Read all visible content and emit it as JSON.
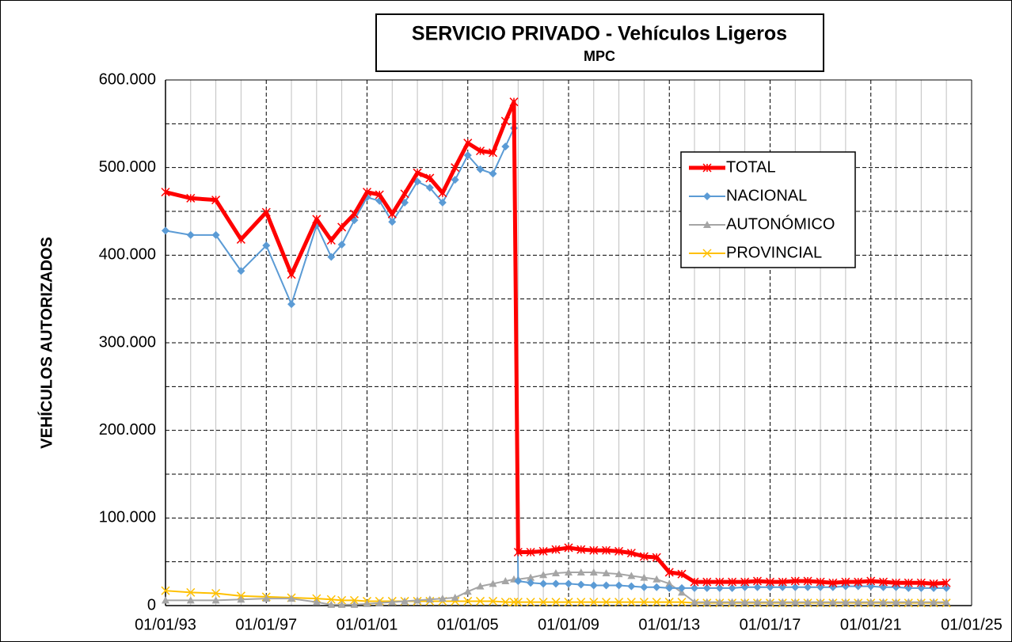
{
  "chart_data": {
    "type": "line",
    "title": "SERVICIO PRIVADO - Vehículos Ligeros",
    "subtitle": "MPC",
    "y_label": "VEHÍCULOS AUTORIZADOS",
    "x": [
      "1993-01-01",
      "1994-01-01",
      "1995-01-01",
      "1996-01-01",
      "1997-01-01",
      "1998-01-01",
      "1999-01-01",
      "1999-08-01",
      "2000-01-01",
      "2000-07-01",
      "2001-01-01",
      "2001-07-01",
      "2002-01-01",
      "2002-07-01",
      "2003-01-01",
      "2003-07-01",
      "2004-01-01",
      "2004-07-01",
      "2005-01-01",
      "2005-07-01",
      "2006-01-01",
      "2006-07-01",
      "2006-11-01",
      "2007-01-01",
      "2007-07-01",
      "2008-01-01",
      "2008-07-01",
      "2009-01-01",
      "2009-07-01",
      "2010-01-01",
      "2010-07-01",
      "2011-01-01",
      "2011-07-01",
      "2012-01-01",
      "2012-07-01",
      "2013-01-01",
      "2013-07-01",
      "2014-01-01",
      "2014-07-01",
      "2015-01-01",
      "2015-07-01",
      "2016-01-01",
      "2016-07-01",
      "2017-01-01",
      "2017-07-01",
      "2018-01-01",
      "2018-07-01",
      "2019-01-01",
      "2019-07-01",
      "2020-01-01",
      "2020-07-01",
      "2021-01-01",
      "2021-07-01",
      "2022-01-01",
      "2022-07-01",
      "2023-01-01",
      "2023-07-01",
      "2024-01-01"
    ],
    "series": [
      {
        "name": "TOTAL",
        "color": "#ff0000",
        "width": 5,
        "marker": "star",
        "values": [
          472000,
          465000,
          463000,
          418000,
          449000,
          378000,
          441000,
          417000,
          432000,
          447000,
          472000,
          469000,
          447000,
          470000,
          494000,
          488000,
          471000,
          500000,
          528000,
          519000,
          517000,
          553000,
          575000,
          61000,
          61000,
          62000,
          64000,
          66000,
          64000,
          63000,
          63000,
          62000,
          60000,
          56000,
          55000,
          38000,
          36000,
          27000,
          27000,
          27000,
          27000,
          27000,
          28000,
          27000,
          27000,
          28000,
          28000,
          27000,
          26000,
          27000,
          27000,
          28000,
          27000,
          26000,
          26000,
          26000,
          25000,
          26000
        ]
      },
      {
        "name": "NACIONAL",
        "color": "#5b9bd5",
        "width": 2,
        "marker": "diamond",
        "values": [
          428000,
          423000,
          423000,
          382000,
          411000,
          344000,
          434000,
          398000,
          412000,
          440000,
          466000,
          462000,
          438000,
          460000,
          484000,
          477000,
          460000,
          486000,
          514000,
          498000,
          493000,
          524000,
          545000,
          28000,
          26000,
          25000,
          25000,
          25000,
          24000,
          23000,
          23000,
          23000,
          22000,
          21000,
          21000,
          20000,
          20000,
          20000,
          20000,
          20000,
          20000,
          21000,
          21000,
          21000,
          21000,
          21000,
          21000,
          21000,
          21000,
          22000,
          22000,
          22000,
          21000,
          21000,
          20000,
          20000,
          20000,
          20000
        ]
      },
      {
        "name": "AUTONÓMICO",
        "color": "#a5a5a5",
        "width": 2,
        "marker": "triangle",
        "values": [
          6000,
          6000,
          6000,
          7000,
          8000,
          8000,
          4000,
          1000,
          1000,
          1000,
          2000,
          3000,
          4000,
          5000,
          6000,
          7000,
          8000,
          9000,
          16000,
          22000,
          25000,
          28000,
          30000,
          30000,
          32000,
          35000,
          37000,
          38000,
          38000,
          38000,
          37000,
          36000,
          34000,
          32000,
          30000,
          25000,
          15000,
          4000,
          4000,
          4000,
          4000,
          4000,
          4000,
          4000,
          4000,
          4000,
          4000,
          4000,
          4000,
          4000,
          4000,
          4000,
          4000,
          4000,
          4000,
          4000,
          4000,
          4000
        ]
      },
      {
        "name": "PROVINCIAL",
        "color": "#ffc000",
        "width": 2,
        "marker": "x",
        "values": [
          17000,
          15000,
          14000,
          11000,
          10000,
          9000,
          8000,
          7000,
          6000,
          6000,
          5000,
          5000,
          5000,
          5000,
          5000,
          5000,
          5000,
          5000,
          5000,
          5000,
          5000,
          4000,
          4000,
          4000,
          4000,
          4000,
          4000,
          4000,
          4000,
          4000,
          4000,
          4000,
          4000,
          4000,
          4000,
          4000,
          4000,
          3000,
          3000,
          3000,
          3000,
          3000,
          3000,
          3000,
          3000,
          3000,
          3000,
          3000,
          3000,
          3000,
          3000,
          3000,
          3000,
          3000,
          3000,
          3000,
          3000,
          3000
        ]
      }
    ],
    "xlim": [
      "1993-01-01",
      "2025-01-01"
    ],
    "xticks": [
      {
        "value": "1993-01-01",
        "label": "01/01/93"
      },
      {
        "value": "1997-01-01",
        "label": "01/01/97"
      },
      {
        "value": "2001-01-01",
        "label": "01/01/01"
      },
      {
        "value": "2005-01-01",
        "label": "01/01/05"
      },
      {
        "value": "2009-01-01",
        "label": "01/01/09"
      },
      {
        "value": "2013-01-01",
        "label": "01/01/13"
      },
      {
        "value": "2017-01-01",
        "label": "01/01/17"
      },
      {
        "value": "2021-01-01",
        "label": "01/01/21"
      },
      {
        "value": "2025-01-01",
        "label": "01/01/25"
      }
    ],
    "xminorticks": [
      "1994-01-01",
      "1995-01-01",
      "1996-01-01",
      "1998-01-01",
      "1999-01-01",
      "2000-01-01",
      "2002-01-01",
      "2003-01-01",
      "2004-01-01",
      "2006-01-01",
      "2007-01-01",
      "2008-01-01",
      "2010-01-01",
      "2011-01-01",
      "2012-01-01",
      "2014-01-01",
      "2015-01-01",
      "2016-01-01",
      "2018-01-01",
      "2019-01-01",
      "2020-01-01",
      "2022-01-01",
      "2023-01-01",
      "2024-01-01"
    ],
    "ylim": [
      0,
      600000
    ],
    "yticks": [
      0,
      {
        "value": 100000,
        "label": "100.000"
      },
      {
        "value": 200000,
        "label": "200.000"
      },
      {
        "value": 300000,
        "label": "300.000"
      },
      {
        "value": 400000,
        "label": "400.000"
      },
      {
        "value": 500000,
        "label": "500.000"
      },
      {
        "value": 600000,
        "label": "600.000"
      }
    ],
    "yminorticks": [
      50000,
      150000,
      250000,
      350000,
      450000,
      550000
    ],
    "grid": true,
    "legend": "upper right"
  }
}
